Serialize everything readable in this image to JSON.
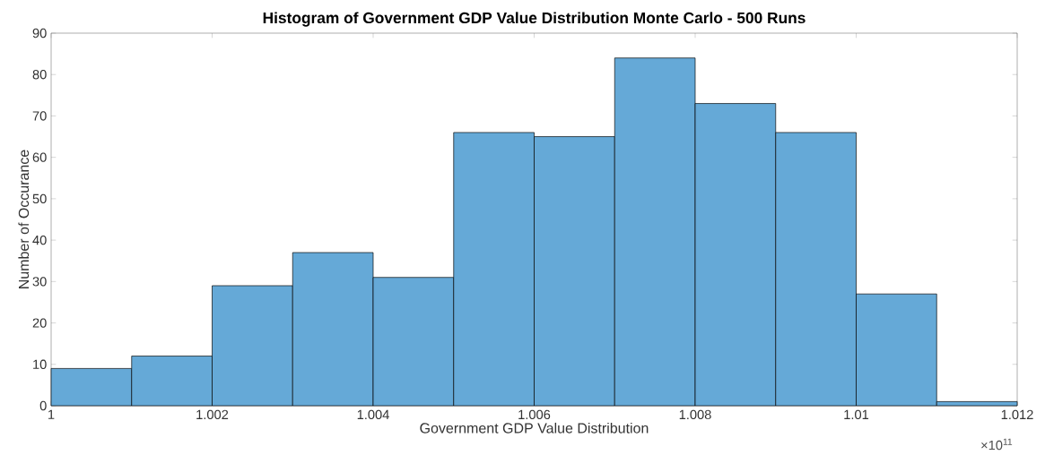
{
  "chart_data": {
    "type": "histogram",
    "title": "Histogram of Government GDP Value Distribution Monte Carlo - 500 Runs",
    "xlabel": "Government GDP Value Distribution",
    "ylabel": "Number of Occurance",
    "bins": [
      1,
      1.001,
      1.002,
      1.003,
      1.004,
      1.005,
      1.006,
      1.007,
      1.008,
      1.009,
      1.01,
      1.011,
      1.012
    ],
    "values": [
      9,
      12,
      29,
      37,
      31,
      66,
      65,
      84,
      73,
      66,
      27,
      1
    ],
    "color": "#65a9d7",
    "xlim": [
      1,
      1.012
    ],
    "xticks": [
      1,
      1.002,
      1.004,
      1.006,
      1.008,
      1.01,
      1.012
    ],
    "ylim": [
      0,
      90
    ],
    "yticks": [
      0,
      10,
      20,
      30,
      40,
      50,
      60,
      70,
      80,
      90
    ],
    "annotations": [
      "×10$^{11}$"
    ]
  }
}
